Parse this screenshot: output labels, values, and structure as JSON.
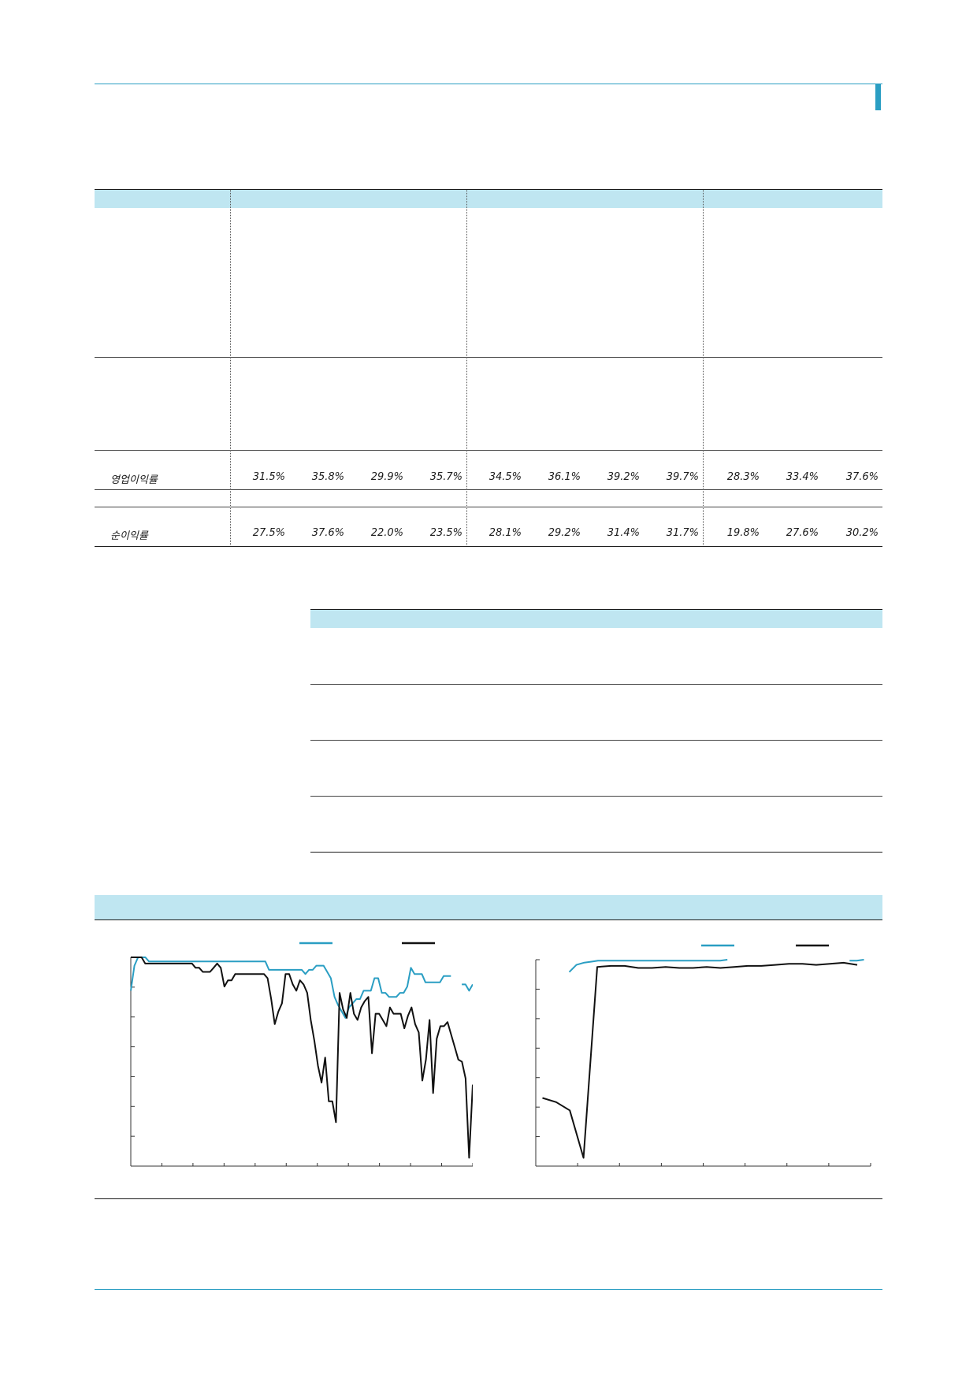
{
  "colors": {
    "accent": "#2a9ec3",
    "band": "#bfe6f1",
    "line_black": "#111111"
  },
  "table1": {
    "rows": [
      {
        "label": "영업이익률",
        "values": [
          "31.5%",
          "35.8%",
          "29.9%",
          "35.7%",
          "34.5%",
          "36.1%",
          "39.2%",
          "39.7%",
          "28.3%",
          "33.4%",
          "37.6%"
        ]
      },
      {
        "label": "순이익률",
        "values": [
          "27.5%",
          "37.6%",
          "22.0%",
          "23.5%",
          "28.1%",
          "29.2%",
          "31.4%",
          "31.7%",
          "19.8%",
          "27.6%",
          "30.2%"
        ]
      }
    ]
  },
  "chart_data": [
    {
      "type": "line",
      "series": [
        {
          "color": "#2a9ec3",
          "values": [
            84,
            96,
            100,
            100,
            100,
            98,
            98,
            98,
            98,
            98,
            98,
            98,
            98,
            98,
            98,
            98,
            98,
            98,
            98,
            98,
            98,
            98,
            98,
            98,
            98,
            98,
            98,
            98,
            98,
            98,
            98,
            98,
            98,
            98,
            98,
            98,
            98,
            98,
            94,
            94,
            94,
            94,
            94,
            94,
            94,
            94,
            94,
            94,
            92,
            94,
            94,
            96,
            96,
            96,
            93,
            90,
            81,
            77,
            74,
            71,
            76,
            78,
            80,
            80,
            84,
            84,
            84,
            90,
            90,
            83,
            83,
            81,
            81,
            81,
            83,
            83,
            86,
            95,
            92,
            92,
            92,
            88,
            88,
            88,
            88,
            88,
            91,
            91,
            91,
            null,
            null,
            87,
            87,
            84,
            87
          ]
        },
        {
          "color": "#111111",
          "values": [
            100,
            100,
            100,
            100,
            97,
            97,
            97,
            97,
            97,
            97,
            97,
            97,
            97,
            97,
            97,
            97,
            97,
            97,
            95,
            95,
            93,
            93,
            93,
            95,
            97,
            95,
            86,
            89,
            89,
            92,
            92,
            92,
            92,
            92,
            92,
            92,
            92,
            92,
            90,
            80,
            68,
            74,
            78,
            92,
            92,
            87,
            84,
            89,
            87,
            83,
            70,
            60,
            48,
            40,
            52,
            31,
            31,
            21,
            83,
            75,
            71,
            83,
            73,
            70,
            76,
            79,
            81,
            54,
            73,
            73,
            70,
            67,
            76,
            73,
            73,
            73,
            66,
            72,
            76,
            68,
            64,
            41,
            51,
            70,
            35,
            61,
            67,
            67,
            69,
            63,
            57,
            51,
            50,
            42,
            4,
            39
          ]
        }
      ],
      "ylim": [
        0,
        100
      ]
    },
    {
      "type": "line",
      "series": [
        {
          "color": "#2a9ec3",
          "values": [
            94,
            97.5,
            98.5,
            99,
            99.5,
            99.5,
            99.5,
            99.5,
            99.5,
            99.5,
            99.5,
            99.5,
            99.5,
            99.5,
            99.5,
            99.5,
            99.5,
            99.5,
            99.5,
            99.5,
            99.5,
            99.5,
            100,
            null,
            null,
            null,
            null,
            null,
            null,
            null,
            null,
            null,
            null,
            null,
            null,
            null,
            null,
            null,
            null,
            99.5,
            99.5,
            100
          ]
        },
        {
          "color": "#111111",
          "values": [
            33,
            31,
            27,
            4,
            96.5,
            97,
            97,
            96,
            96,
            96.5,
            96,
            96,
            96.5,
            96,
            96.5,
            97,
            97,
            97.5,
            98,
            98,
            97.5,
            98,
            98.5,
            97.5
          ]
        }
      ],
      "ylim": [
        0,
        100
      ]
    }
  ]
}
